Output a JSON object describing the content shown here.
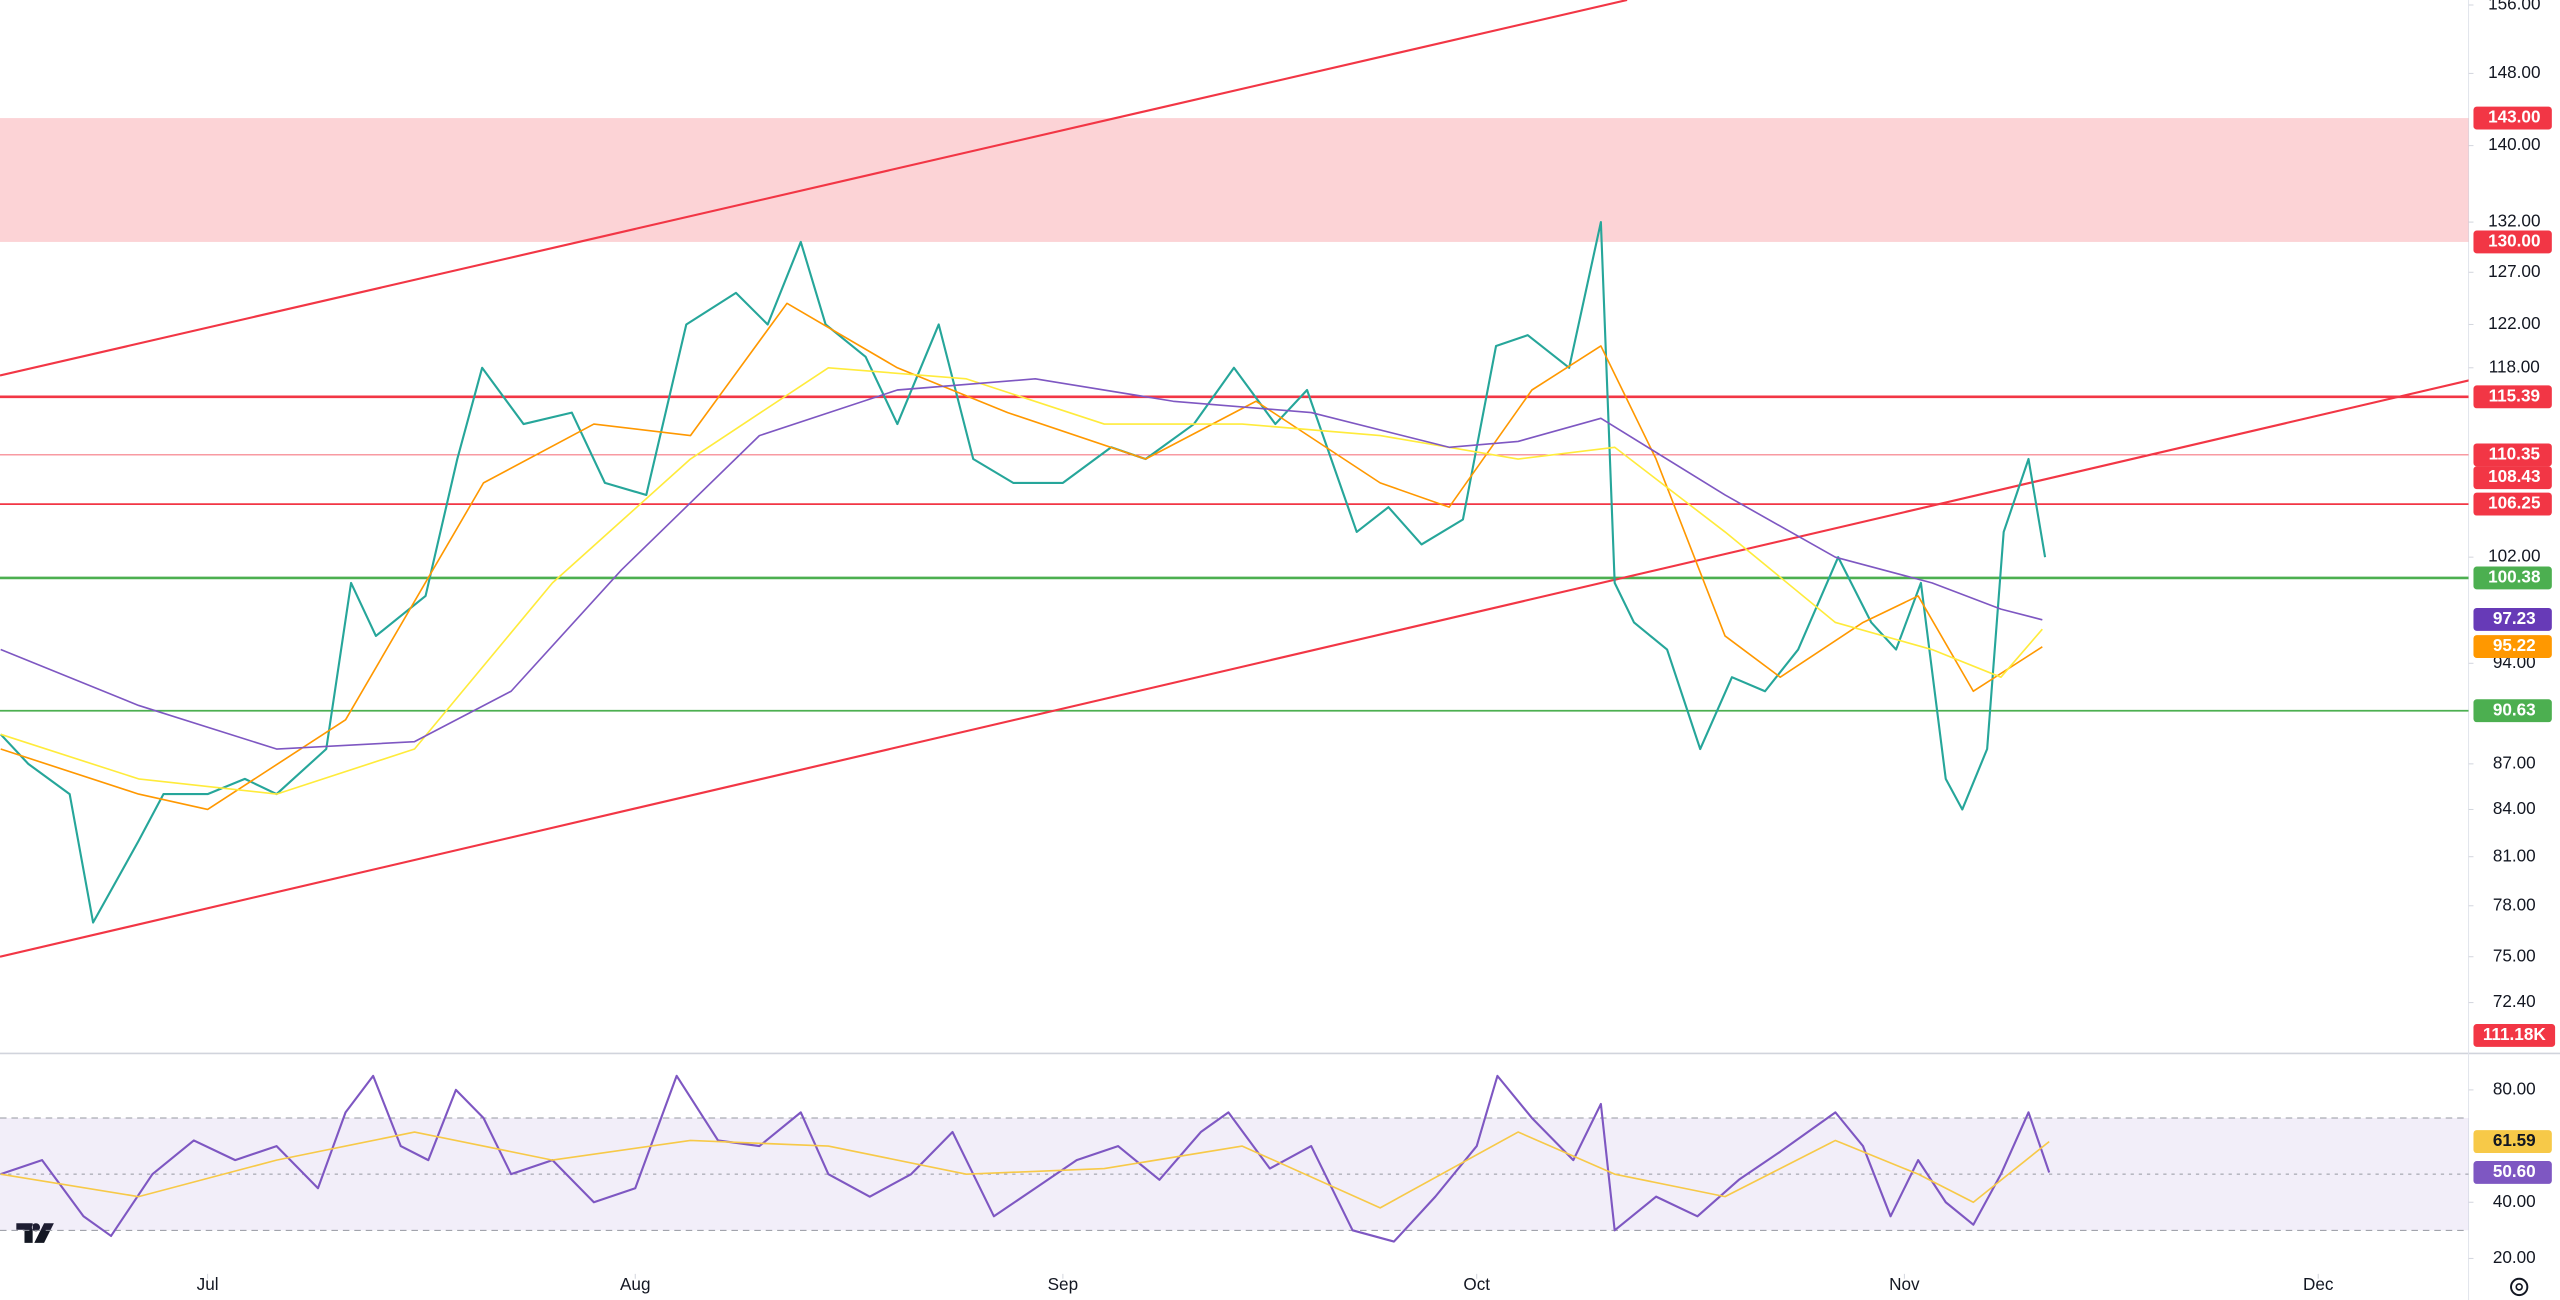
{
  "chart_data": [
    {
      "type": "line",
      "log_scale": true,
      "grid": false,
      "xlim": [
        -15.05,
        163.9
      ],
      "ylim": [
        69.8,
        156.6
      ],
      "xticks": [
        {
          "value": 0,
          "label": "Jul"
        },
        {
          "value": 31,
          "label": "Aug"
        },
        {
          "value": 62,
          "label": "Sep"
        },
        {
          "value": 92,
          "label": "Oct"
        },
        {
          "value": 123,
          "label": "Nov"
        },
        {
          "value": 153,
          "label": "Dec"
        }
      ],
      "yticks": [
        {
          "value": 156,
          "label": "156.00"
        },
        {
          "value": 148,
          "label": "148.00"
        },
        {
          "value": 140,
          "label": "140.00"
        },
        {
          "value": 132,
          "label": "132.00"
        },
        {
          "value": 127,
          "label": "127.00"
        },
        {
          "value": 122,
          "label": "122.00"
        },
        {
          "value": 118,
          "label": "118.00"
        },
        {
          "value": 102,
          "label": "102.00"
        },
        {
          "value": 94,
          "label": "94.00"
        },
        {
          "value": 87,
          "label": "87.00"
        },
        {
          "value": 84,
          "label": "84.00"
        },
        {
          "value": 81,
          "label": "81.00"
        },
        {
          "value": 78,
          "label": "78.00"
        },
        {
          "value": 75,
          "label": "75.00"
        },
        {
          "value": 72.4,
          "label": "72.40"
        }
      ],
      "series": [
        {
          "color": "#26a69a",
          "x": [
            -15,
            -13,
            -10,
            -8.3,
            -5,
            -3.2,
            0,
            2.7,
            5,
            8.6,
            10.4,
            12.2,
            15.8,
            18.1,
            19.9,
            22.9,
            26.4,
            28.8,
            31.8,
            34.7,
            38.3,
            40.6,
            43,
            44.8,
            47.7,
            50,
            53,
            55.5,
            58.4,
            62,
            65.5,
            68,
            71.5,
            74.4,
            77.4,
            79.7,
            83.3,
            85.6,
            88,
            91,
            93.4,
            95.7,
            98.7,
            101,
            102,
            103.4,
            105.8,
            108.2,
            110.5,
            112.9,
            115.3,
            118.2,
            120.6,
            122.4,
            124.2,
            126,
            127.2,
            129,
            130.2,
            132,
            133.2
          ],
          "values": [
            89,
            87,
            85,
            77,
            82,
            85,
            85,
            86,
            85,
            88,
            100,
            96,
            99,
            110,
            118,
            113,
            114,
            108,
            107,
            122,
            125,
            122,
            130,
            122,
            119,
            113,
            122,
            110,
            108,
            108,
            111,
            110,
            113,
            118,
            113,
            116,
            104,
            106,
            103,
            105,
            120,
            121,
            118,
            132,
            100,
            97,
            95,
            88,
            93,
            92,
            95,
            102,
            97,
            95,
            100,
            86,
            84,
            88,
            104,
            110,
            102
          ]
        },
        {
          "color": "#ff9800",
          "x": [
            -15,
            -5,
            0,
            10,
            20,
            28,
            35,
            42,
            50,
            58,
            68,
            76,
            85,
            90,
            96,
            101,
            105,
            110,
            114,
            120,
            124,
            128,
            133
          ],
          "values": [
            88,
            85,
            84,
            90,
            108,
            113,
            112,
            124,
            118,
            114,
            110,
            115,
            108,
            106,
            116,
            120,
            110,
            96,
            93,
            97,
            99,
            92,
            95.2
          ]
        },
        {
          "color": "#ffeb3b",
          "x": [
            -15,
            -5,
            5,
            15,
            25,
            35,
            45,
            55,
            65,
            75,
            85,
            95,
            102,
            110,
            118,
            125,
            130,
            133
          ],
          "values": [
            89,
            86,
            85,
            88,
            100,
            110,
            118,
            117,
            113,
            113,
            112,
            110,
            111,
            104,
            97,
            95,
            93,
            96.5
          ]
        },
        {
          "color": "#7e57c2",
          "x": [
            -15,
            -5,
            5,
            15,
            22,
            30,
            40,
            50,
            60,
            70,
            80,
            90,
            95,
            101,
            110,
            118,
            125,
            130,
            133
          ],
          "values": [
            95,
            91,
            88,
            88.5,
            92,
            101,
            112,
            116,
            117,
            115,
            114,
            111,
            111.5,
            113.5,
            107,
            102,
            100,
            98,
            97.2
          ]
        }
      ],
      "trendlines": [
        {
          "color": "#f23645",
          "x": [
            -15.05,
            102.9
          ],
          "y": [
            117.3,
            156.6
          ]
        },
        {
          "color": "#f23645",
          "x": [
            -15.05,
            164.4
          ],
          "y": [
            75,
            117
          ]
        }
      ],
      "zone_color": "#f23645",
      "levels": [
        {
          "value": 143,
          "label": "143.00",
          "color": "#f23645",
          "line": "none"
        },
        {
          "value": 130,
          "label": "130.00",
          "color": "#f23645",
          "line": "none"
        },
        {
          "value": 115.39,
          "label": "115.39",
          "color": "#f23645",
          "line": "thick"
        },
        {
          "value": 110.35,
          "label": "110.35",
          "color": "#f23645",
          "line": "thin"
        },
        {
          "value": 108.43,
          "label": "108.43",
          "color": "#f23645",
          "line": "none"
        },
        {
          "value": 106.25,
          "label": "106.25",
          "color": "#f23645",
          "line": "medium"
        },
        {
          "value": 100.38,
          "label": "100.38",
          "color": "#4caf50",
          "line": "thick"
        },
        {
          "value": 97.23,
          "label": "97.23",
          "color": "#673ab7",
          "line": "none"
        },
        {
          "value": 95.22,
          "label": "95.22",
          "color": "#ff9800",
          "line": "none"
        },
        {
          "value": 90.63,
          "label": "90.63",
          "color": "#4caf50",
          "line": "medium"
        }
      ],
      "volume_label": "111.18K",
      "volume_color": "#f23645"
    },
    {
      "type": "line",
      "grid": false,
      "xlim": [
        -15.05,
        163.9
      ],
      "ylim": [
        14.5,
        93
      ],
      "yticks": [
        {
          "value": 80,
          "label": "80.00"
        },
        {
          "value": 40,
          "label": "40.00"
        },
        {
          "value": 20,
          "label": "20.00"
        }
      ],
      "band": [
        30,
        70
      ],
      "midline": 50,
      "band_color": "#7e57c2",
      "series": [
        {
          "color": "#7e57c2",
          "x": [
            -15,
            -12,
            -9,
            -7,
            -4,
            -1,
            2,
            5,
            8,
            10,
            12,
            14,
            16,
            18,
            20,
            22,
            25,
            28,
            31,
            34,
            37,
            40,
            43,
            45,
            48,
            51,
            54,
            57,
            60,
            63,
            66,
            69,
            72,
            74,
            77,
            80,
            83,
            86,
            89,
            92,
            93.5,
            96,
            99,
            101,
            102,
            105,
            108,
            111,
            114,
            118,
            120,
            122,
            124,
            126,
            128,
            130,
            132,
            133.5
          ],
          "values": [
            50,
            55,
            35,
            28,
            50,
            62,
            55,
            60,
            45,
            72,
            85,
            60,
            55,
            80,
            70,
            50,
            55,
            40,
            45,
            85,
            62,
            60,
            72,
            50,
            42,
            50,
            65,
            35,
            45,
            55,
            60,
            48,
            65,
            72,
            52,
            60,
            30,
            26,
            42,
            60,
            85,
            70,
            55,
            75,
            30,
            42,
            35,
            48,
            58,
            72,
            60,
            35,
            55,
            40,
            32,
            50,
            72,
            50.6
          ]
        },
        {
          "color": "#f7c948",
          "x": [
            -15,
            -5,
            5,
            15,
            25,
            35,
            45,
            55,
            65,
            75,
            85,
            95,
            102,
            110,
            118,
            124,
            128,
            133.5
          ],
          "values": [
            50,
            42,
            55,
            65,
            55,
            62,
            60,
            50,
            52,
            60,
            38,
            65,
            50,
            42,
            62,
            50,
            40,
            61.6
          ]
        }
      ],
      "last_labels": [
        {
          "value": 61.59,
          "label": "61.59",
          "color": "#f7c948"
        },
        {
          "value": 50.6,
          "label": "50.60",
          "color": "#7e57c2"
        }
      ]
    }
  ]
}
